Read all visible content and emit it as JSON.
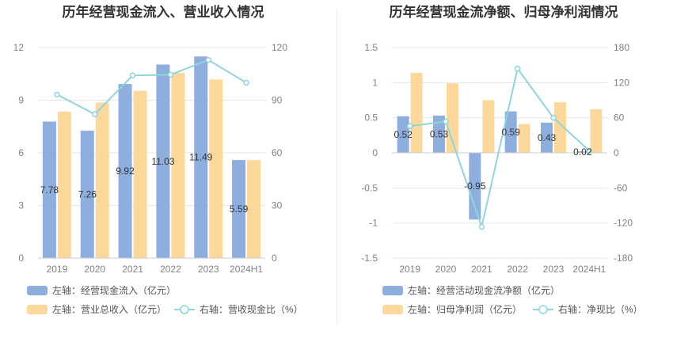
{
  "colors": {
    "bar1": "#8eaedd",
    "bar2": "#fdd89d",
    "line": "#8ed5dc",
    "grid": "#e6e6e6",
    "axis": "#cccccc"
  },
  "chart_data": [
    {
      "type": "bar",
      "title": "历年经营现金流入、营业收入情况",
      "categories": [
        "2019",
        "2020",
        "2021",
        "2022",
        "2023",
        "2024H1"
      ],
      "left_axis": {
        "min": 0,
        "max": 12,
        "ticks": [
          "0",
          "3",
          "6",
          "9",
          "12"
        ]
      },
      "right_axis": {
        "min": 0,
        "max": 120,
        "ticks": [
          "0",
          "30",
          "60",
          "90",
          "120"
        ]
      },
      "series": [
        {
          "name": "左轴：经营现金流入（亿元）",
          "kind": "bar",
          "axis": "left",
          "values": [
            7.78,
            7.26,
            9.92,
            11.03,
            11.49,
            5.59
          ],
          "labels": [
            "7.78",
            "7.26",
            "9.92",
            "11.03",
            "11.49",
            "5.59"
          ]
        },
        {
          "name": "左轴：营业总收入（亿元）",
          "kind": "bar",
          "axis": "left",
          "values": [
            8.35,
            8.86,
            9.53,
            10.55,
            10.18,
            5.59
          ]
        },
        {
          "name": "右轴：营收现金比（%）",
          "kind": "line",
          "axis": "right",
          "values": [
            93.2,
            82.0,
            104.1,
            104.5,
            112.9,
            99.9
          ]
        }
      ]
    },
    {
      "type": "bar",
      "title": "历年经营现金流净额、归母净利润情况",
      "categories": [
        "2019",
        "2020",
        "2021",
        "2022",
        "2023",
        "2024H1"
      ],
      "left_axis": {
        "min": -1.5,
        "max": 1.5,
        "ticks": [
          "-1.5",
          "-1",
          "-0.5",
          "0",
          "0.5",
          "1",
          "1.5"
        ]
      },
      "right_axis": {
        "min": -180,
        "max": 180,
        "ticks": [
          "-180",
          "-120",
          "-60",
          "0",
          "60",
          "120",
          "180"
        ]
      },
      "series": [
        {
          "name": "左轴：经营活动现金流净额（亿元）",
          "kind": "bar",
          "axis": "left",
          "values": [
            0.52,
            0.53,
            -0.95,
            0.59,
            0.43,
            0.02
          ],
          "labels": [
            "0.52",
            "0.53",
            "-0.95",
            "0.59",
            "0.43",
            "0.02"
          ]
        },
        {
          "name": "左轴：归母净利润（亿元）",
          "kind": "bar",
          "axis": "left",
          "values": [
            1.14,
            0.99,
            0.75,
            0.41,
            0.72,
            0.62
          ]
        },
        {
          "name": "右轴：净现比（%）",
          "kind": "line",
          "axis": "right",
          "values": [
            45.6,
            53.5,
            -126.7,
            143.9,
            59.7,
            3.2
          ]
        }
      ]
    }
  ]
}
